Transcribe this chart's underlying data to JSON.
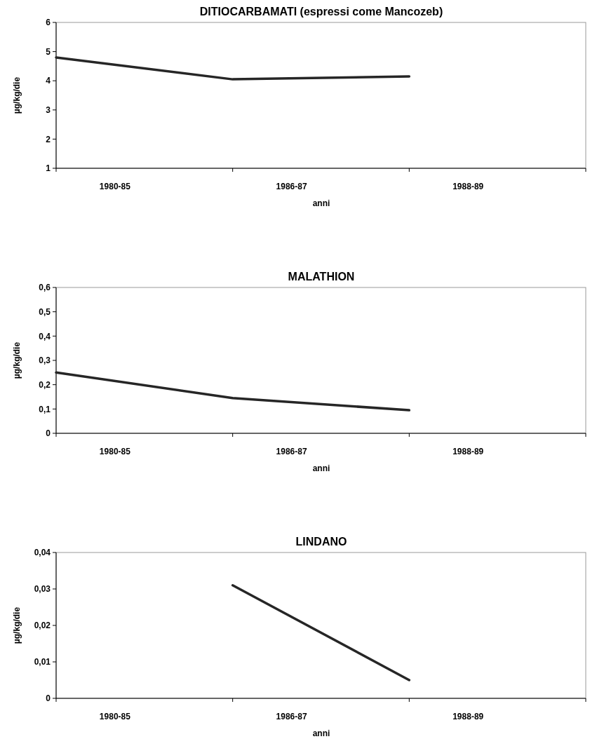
{
  "chart_data": [
    {
      "type": "line",
      "title": "DITIOCARBAMATI (espressi come Mancozeb)",
      "xlabel": "anni",
      "ylabel": "µg/kg/die",
      "categories": [
        "1980-85",
        "1986-87",
        "1988-89"
      ],
      "series": [
        {
          "color": "#262626",
          "values": [
            4.8,
            4.05,
            4.15
          ]
        }
      ],
      "ylim": [
        1,
        6
      ],
      "yticks": [
        1,
        2,
        3,
        4,
        5,
        6
      ],
      "grid": false,
      "marker": "none"
    },
    {
      "type": "line",
      "title": "MALATHION",
      "xlabel": "anni",
      "ylabel": "µg/kg/die",
      "categories": [
        "1980-85",
        "1986-87",
        "1988-89"
      ],
      "series": [
        {
          "color": "#262626",
          "values": [
            0.25,
            0.145,
            0.095
          ]
        }
      ],
      "ylim": [
        0,
        0.6
      ],
      "yticks": [
        0,
        {
          "value": 0.1,
          "label": "0,1"
        },
        {
          "value": 0.2,
          "label": "0,2"
        },
        {
          "value": 0.3,
          "label": "0,3"
        },
        {
          "value": 0.4,
          "label": "0,4"
        },
        {
          "value": 0.5,
          "label": "0,5"
        },
        {
          "value": 0.6,
          "label": "0,6"
        }
      ],
      "grid": false,
      "marker": "none"
    },
    {
      "type": "line",
      "title": "LINDANO",
      "xlabel": "anni",
      "ylabel": "µg/kg/die",
      "categories": [
        "1980-85",
        "1986-87",
        "1988-89"
      ],
      "series": [
        {
          "color": "#262626",
          "values": [
            null,
            0.031,
            0.005
          ]
        }
      ],
      "ylim": [
        0,
        0.04
      ],
      "yticks": [
        0,
        {
          "value": 0.01,
          "label": "0,01"
        },
        {
          "value": 0.02,
          "label": "0,02"
        },
        {
          "value": 0.03,
          "label": "0,03"
        },
        {
          "value": 0.04,
          "label": "0,04"
        }
      ],
      "grid": false,
      "marker": "none"
    }
  ]
}
